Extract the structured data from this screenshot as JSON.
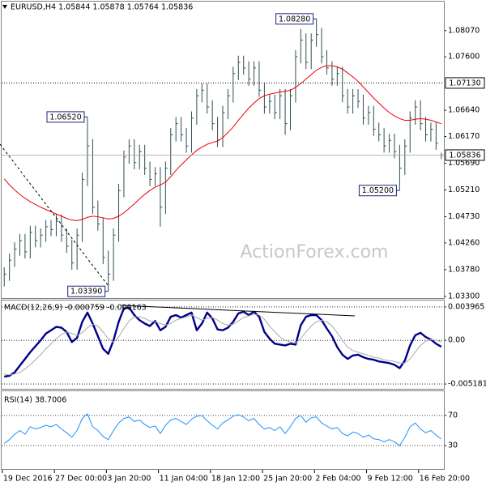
{
  "chart_data": [
    {
      "type": "ohlc",
      "title": "EURUSD,H4  1.05844 1.05878 1.05764 1.05836",
      "watermark": "ActionForex.com",
      "categories": [
        null,
        null,
        null,
        null,
        "19 Dec 2016",
        null,
        null,
        null,
        null,
        null,
        null,
        null,
        null,
        null,
        "27 Dec 00:00",
        null,
        null,
        null,
        null,
        null,
        null,
        null,
        null,
        null,
        "3 Jan 20:00",
        null,
        null,
        null,
        null,
        null,
        null,
        null,
        null,
        null,
        "11 Jan 04:00",
        null,
        null,
        null,
        null,
        null,
        null,
        null,
        null,
        null,
        "18 Jan 12:00",
        null,
        null,
        null,
        null,
        null,
        null,
        null,
        null,
        null,
        "25 Jan 20:00",
        null,
        null,
        null,
        null,
        null,
        null,
        null,
        null,
        null,
        "2 Feb 04:00",
        null,
        null,
        null,
        null,
        null,
        null,
        null,
        null,
        null,
        "9 Feb 12:00",
        null,
        null,
        null,
        null,
        null,
        null,
        null,
        null,
        null,
        "16 Feb 20:00"
      ],
      "high": [
        1.0382,
        1.0407,
        1.0427,
        1.0442,
        1.0442,
        1.0457,
        1.0457,
        1.0452,
        1.0467,
        1.0467,
        1.0477,
        1.0477,
        1.0452,
        1.0432,
        1.0452,
        1.0552,
        1.0652,
        1.0612,
        1.0502,
        1.0472,
        1.0412,
        1.0452,
        1.0532,
        1.0592,
        1.0612,
        1.0612,
        1.0602,
        1.0602,
        1.0572,
        1.0562,
        1.0562,
        1.0572,
        1.0632,
        1.0652,
        1.0652,
        1.0632,
        1.0662,
        1.0702,
        1.0712,
        1.0712,
        1.0682,
        1.0652,
        1.0672,
        1.0702,
        1.0742,
        1.0762,
        1.0762,
        1.0752,
        1.0752,
        1.0752,
        1.0712,
        1.0692,
        1.0692,
        1.0702,
        1.0702,
        1.0702,
        1.0772,
        1.081,
        1.0802,
        1.0802,
        1.0828,
        1.0812,
        1.0772,
        1.0752,
        1.0742,
        1.0742,
        1.0702,
        1.0702,
        1.0702,
        1.0692,
        1.0672,
        1.0672,
        1.0642,
        1.0632,
        1.0622,
        1.0622,
        1.0602,
        1.0612,
        1.0662,
        1.0682,
        1.0682,
        1.0652,
        1.0642,
        1.0642,
        1.05878
      ],
      "low": [
        1.0348,
        1.0358,
        1.0383,
        1.0403,
        1.0398,
        1.0398,
        1.0418,
        1.0418,
        1.0428,
        1.0438,
        1.0438,
        1.0428,
        1.0408,
        1.0378,
        1.0378,
        1.0428,
        1.0528,
        1.0478,
        1.0448,
        1.0388,
        1.0339,
        1.0358,
        1.0428,
        1.0508,
        1.0568,
        1.0558,
        1.0558,
        1.0548,
        1.0528,
        1.0528,
        1.0455,
        1.0478,
        1.0548,
        1.0608,
        1.0608,
        1.0588,
        1.0588,
        1.0638,
        1.0678,
        1.0658,
        1.0628,
        1.0598,
        1.0598,
        1.0648,
        1.0678,
        1.0718,
        1.0728,
        1.0708,
        1.0708,
        1.0688,
        1.0658,
        1.0658,
        1.0648,
        1.0648,
        1.062,
        1.0628,
        1.0678,
        1.0748,
        1.0738,
        1.0738,
        1.0778,
        1.0748,
        1.0728,
        1.0708,
        1.0708,
        1.0678,
        1.0658,
        1.0658,
        1.0668,
        1.0638,
        1.0638,
        1.0618,
        1.0608,
        1.0588,
        1.0588,
        1.0578,
        1.052,
        1.0548,
        1.0588,
        1.0638,
        1.0628,
        1.0608,
        1.0608,
        1.0593,
        1.05764
      ],
      "close": [
        1.037,
        1.0395,
        1.0415,
        1.043,
        1.041,
        1.0445,
        1.043,
        1.044,
        1.0455,
        1.045,
        1.0465,
        1.044,
        1.042,
        1.039,
        1.044,
        1.054,
        1.06,
        1.049,
        1.046,
        1.04,
        1.037,
        1.044,
        1.052,
        1.058,
        1.06,
        1.057,
        1.059,
        1.056,
        1.054,
        1.055,
        1.049,
        1.056,
        1.062,
        1.064,
        1.062,
        1.06,
        1.065,
        1.069,
        1.07,
        1.067,
        1.064,
        1.061,
        1.066,
        1.069,
        1.073,
        1.075,
        1.074,
        1.072,
        1.074,
        1.07,
        1.067,
        1.068,
        1.066,
        1.069,
        1.064,
        1.069,
        1.076,
        1.079,
        1.075,
        1.079,
        1.08,
        1.076,
        1.074,
        1.072,
        1.073,
        1.069,
        1.067,
        1.069,
        1.068,
        1.065,
        1.066,
        1.063,
        1.062,
        1.06,
        1.061,
        1.059,
        1.056,
        1.06,
        1.065,
        1.067,
        1.064,
        1.062,
        1.063,
        1.0605,
        1.05836
      ],
      "color": "#2f4f4f",
      "moving_average": {
        "color": "#e8000b",
        "values": [
          1.0541,
          1.053,
          1.0521,
          1.0513,
          1.0506,
          1.05,
          1.0495,
          1.049,
          1.0486,
          1.0482,
          1.0478,
          1.0474,
          1.047,
          1.0467,
          1.0466,
          1.0468,
          1.0472,
          1.0474,
          1.0473,
          1.0471,
          1.0469,
          1.047,
          1.0474,
          1.048,
          1.0488,
          1.0496,
          1.0505,
          1.0513,
          1.052,
          1.0526,
          1.053,
          1.0535,
          1.0545,
          1.0556,
          1.0566,
          1.0575,
          1.0584,
          1.0592,
          1.0598,
          1.0603,
          1.0606,
          1.0609,
          1.0615,
          1.0624,
          1.0634,
          1.0646,
          1.0657,
          1.0668,
          1.0677,
          1.0685,
          1.069,
          1.0693,
          1.0695,
          1.0697,
          1.0698,
          1.07,
          1.0705,
          1.0712,
          1.072,
          1.0728,
          1.0736,
          1.0741,
          1.0744,
          1.0744,
          1.0742,
          1.0738,
          1.0731,
          1.0724,
          1.0716,
          1.0706,
          1.0696,
          1.0686,
          1.0677,
          1.0668,
          1.066,
          1.0654,
          1.0649,
          1.0646,
          1.0646,
          1.0648,
          1.0649,
          1.0648,
          1.0646,
          1.0643,
          1.064
        ]
      },
      "ylim": [
        1.0327,
        1.0859
      ],
      "yticks": [
        {
          "value": 1.0807,
          "label": "1.08070"
        },
        {
          "value": 1.076,
          "label": "1.07600"
        },
        {
          "value": 1.0664,
          "label": "1.06640"
        },
        {
          "value": 1.0617,
          "label": "1.06170"
        },
        {
          "value": 1.0569,
          "label": "1.05690"
        },
        {
          "value": 1.0521,
          "label": "1.05210"
        },
        {
          "value": 1.0473,
          "label": "1.04730"
        },
        {
          "value": 1.0426,
          "label": "1.04260"
        },
        {
          "value": 1.0378,
          "label": "1.03780"
        },
        {
          "value": 1.033,
          "label": "1.03300"
        }
      ],
      "levels": [
        {
          "value": 1.0713,
          "label": "1.07130"
        }
      ],
      "last_price": {
        "value": 1.05836,
        "label": "1.05836"
      },
      "annotations": [
        {
          "value": 1.0652,
          "label": "1.06520"
        },
        {
          "value": 1.0339,
          "label": "1.03390"
        },
        {
          "value": 1.0828,
          "label": "1.08280"
        },
        {
          "value": 1.052,
          "label": "1.05200"
        }
      ]
    },
    {
      "type": "line",
      "title": "MACD(12,26,9) -0.000759 -0.000163",
      "series": [
        {
          "color": "#00008b",
          "values": [
            -0.0043,
            -0.0042,
            -0.0038,
            -0.003,
            -0.0022,
            -0.0014,
            -0.0007,
            0,
            0.0008,
            0.0012,
            0.0016,
            0.0015,
            0.001,
            -0.0002,
            0.0003,
            0.0022,
            0.0033,
            0.002,
            0.0005,
            -0.001,
            -0.0016,
            0,
            0.0022,
            0.0038,
            0.0039,
            0.003,
            0.0024,
            0.002,
            0.0017,
            0.0023,
            0.0012,
            0.0016,
            0.0028,
            0.003,
            0.0027,
            0.003,
            0.0033,
            0.0012,
            0.002,
            0.0033,
            0.0026,
            0.0013,
            0.0012,
            0.0015,
            0.0022,
            0.0032,
            0.0034,
            0.003,
            0.0034,
            0.0028,
            0.001,
            0.0002,
            -0.0004,
            -0.0005,
            -0.0006,
            -0.0004,
            -0.0005,
            0.0018,
            0.0028,
            0.003,
            0.003,
            0.0024,
            0.0014,
            0.0005,
            -0.0008,
            -0.0017,
            -0.0022,
            -0.0018,
            -0.0017,
            -0.002,
            -0.0022,
            -0.0023,
            -0.0025,
            -0.0026,
            -0.0027,
            -0.0029,
            -0.0033,
            -0.0024,
            -0.0006,
            0.0006,
            0.0009,
            0.0004,
            0.0001,
            -0.0004,
            -0.000759
          ]
        },
        {
          "color": "#a9a9a9",
          "values": [
            -0.004,
            -0.0041,
            -0.004,
            -0.0038,
            -0.0034,
            -0.0029,
            -0.0023,
            -0.0017,
            -0.001,
            -0.0004,
            0.0002,
            0.0007,
            0.001,
            0.0008,
            0.0006,
            0.0009,
            0.0015,
            0.0019,
            0.0017,
            0.001,
            0.0002,
            -0.0002,
            0.0004,
            0.0014,
            0.0023,
            0.0028,
            0.0028,
            0.0026,
            0.0023,
            0.0022,
            0.002,
            0.0018,
            0.002,
            0.0024,
            0.0026,
            0.0028,
            0.003,
            0.0027,
            0.0024,
            0.0026,
            0.0027,
            0.0024,
            0.002,
            0.0018,
            0.0019,
            0.0023,
            0.0027,
            0.0029,
            0.0031,
            0.003,
            0.0025,
            0.0017,
            0.001,
            0.0004,
            0,
            -0.0002,
            -0.0003,
            0.0002,
            0.001,
            0.0017,
            0.0022,
            0.0024,
            0.0022,
            0.0017,
            0.0009,
            0,
            -0.0008,
            -0.0012,
            -0.0014,
            -0.0016,
            -0.0018,
            -0.002,
            -0.0021,
            -0.0023,
            -0.0024,
            -0.0025,
            -0.0027,
            -0.0027,
            -0.0022,
            -0.0014,
            -0.0006,
            -0.0001,
            0.0001,
            0,
            -0.000163
          ]
        }
      ],
      "ylim": [
        -0.00575,
        0.00473
      ],
      "yticks": [
        {
          "value": 0.003965,
          "label": "0.003965"
        },
        {
          "value": 0,
          "label": "0.00"
        },
        {
          "value": -0.005181,
          "label": "-0.005181"
        }
      ],
      "grid": "dotted"
    },
    {
      "type": "line",
      "title": "RSI(14) 38.7006",
      "series": [
        {
          "color": "#1e90ff",
          "values": [
            33,
            38,
            45,
            50,
            45,
            55,
            52,
            54,
            57,
            55,
            58,
            52,
            47,
            41,
            50,
            66,
            72,
            55,
            50,
            42,
            38,
            50,
            60,
            66,
            68,
            62,
            64,
            58,
            54,
            56,
            46,
            57,
            64,
            66,
            62,
            58,
            65,
            69,
            70,
            63,
            57,
            52,
            60,
            64,
            69,
            71,
            68,
            63,
            66,
            58,
            52,
            54,
            50,
            55,
            46,
            55,
            66,
            70,
            61,
            67,
            68,
            60,
            56,
            52,
            54,
            46,
            43,
            48,
            46,
            41,
            44,
            39,
            38,
            35,
            38,
            35,
            30,
            41,
            55,
            60,
            52,
            47,
            50,
            44,
            38.7006
          ]
        }
      ],
      "ylim": [
        0,
        100
      ],
      "yticks": [
        70,
        30
      ],
      "grid": "dotted"
    }
  ]
}
